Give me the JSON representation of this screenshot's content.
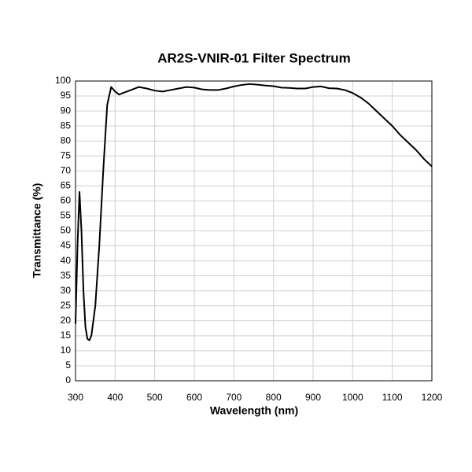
{
  "chart_data": {
    "type": "line",
    "title": "AR2S-VNIR-01 Filter Spectrum",
    "x_label": "Wavelength (nm)",
    "y_label": "Transmittance (%)",
    "x": [
      300,
      305,
      310,
      315,
      320,
      325,
      330,
      335,
      340,
      350,
      360,
      370,
      380,
      390,
      400,
      410,
      420,
      440,
      460,
      480,
      500,
      520,
      540,
      560,
      580,
      600,
      620,
      640,
      660,
      680,
      700,
      720,
      740,
      760,
      780,
      800,
      820,
      840,
      860,
      880,
      900,
      920,
      940,
      960,
      980,
      1000,
      1020,
      1040,
      1060,
      1080,
      1100,
      1120,
      1140,
      1160,
      1180,
      1200
    ],
    "series": [
      {
        "name": "Transmittance",
        "color": "#000000",
        "values": [
          19,
          45,
          63,
          50,
          30,
          18,
          14,
          13.5,
          15,
          25,
          45,
          70,
          92,
          98,
          96.5,
          95.5,
          96,
          97,
          98,
          97.5,
          96.8,
          96.5,
          97,
          97.5,
          98,
          97.8,
          97.2,
          97,
          97,
          97.5,
          98.2,
          98.7,
          99,
          98.8,
          98.5,
          98.3,
          97.8,
          97.7,
          97.5,
          97.5,
          98,
          98.2,
          97.6,
          97.5,
          97,
          96,
          94.5,
          92.5,
          90,
          87.5,
          85,
          82,
          79.5,
          77,
          74,
          71.5
        ]
      }
    ],
    "xlim": [
      300,
      1200
    ],
    "xticks": [
      300,
      400,
      500,
      600,
      700,
      800,
      900,
      1000,
      1100,
      1200
    ],
    "ylim": [
      0,
      100
    ],
    "yticks": [
      0,
      5,
      10,
      15,
      20,
      25,
      30,
      35,
      40,
      45,
      50,
      55,
      60,
      65,
      70,
      75,
      80,
      85,
      90,
      95,
      100
    ],
    "grid": true
  }
}
